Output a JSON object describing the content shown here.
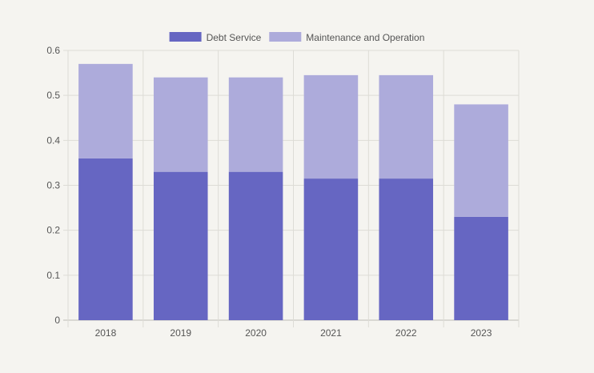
{
  "chart_data": {
    "type": "bar",
    "stacked": true,
    "title": "",
    "xlabel": "",
    "ylabel": "",
    "categories": [
      "2018",
      "2019",
      "2020",
      "2021",
      "2022",
      "2023"
    ],
    "series": [
      {
        "name": "Debt Service",
        "values": [
          0.36,
          0.33,
          0.33,
          0.315,
          0.315,
          0.23
        ],
        "color": "#6666c2"
      },
      {
        "name": "Maintenance and Operation",
        "values": [
          0.21,
          0.21,
          0.21,
          0.23,
          0.23,
          0.25
        ],
        "color": "#adabdb"
      }
    ],
    "ylim": [
      0,
      0.6
    ],
    "yticks": [
      "0",
      "0.1",
      "0.2",
      "0.3",
      "0.4",
      "0.5",
      "0.6"
    ],
    "grid": true,
    "legend_position": "top"
  }
}
